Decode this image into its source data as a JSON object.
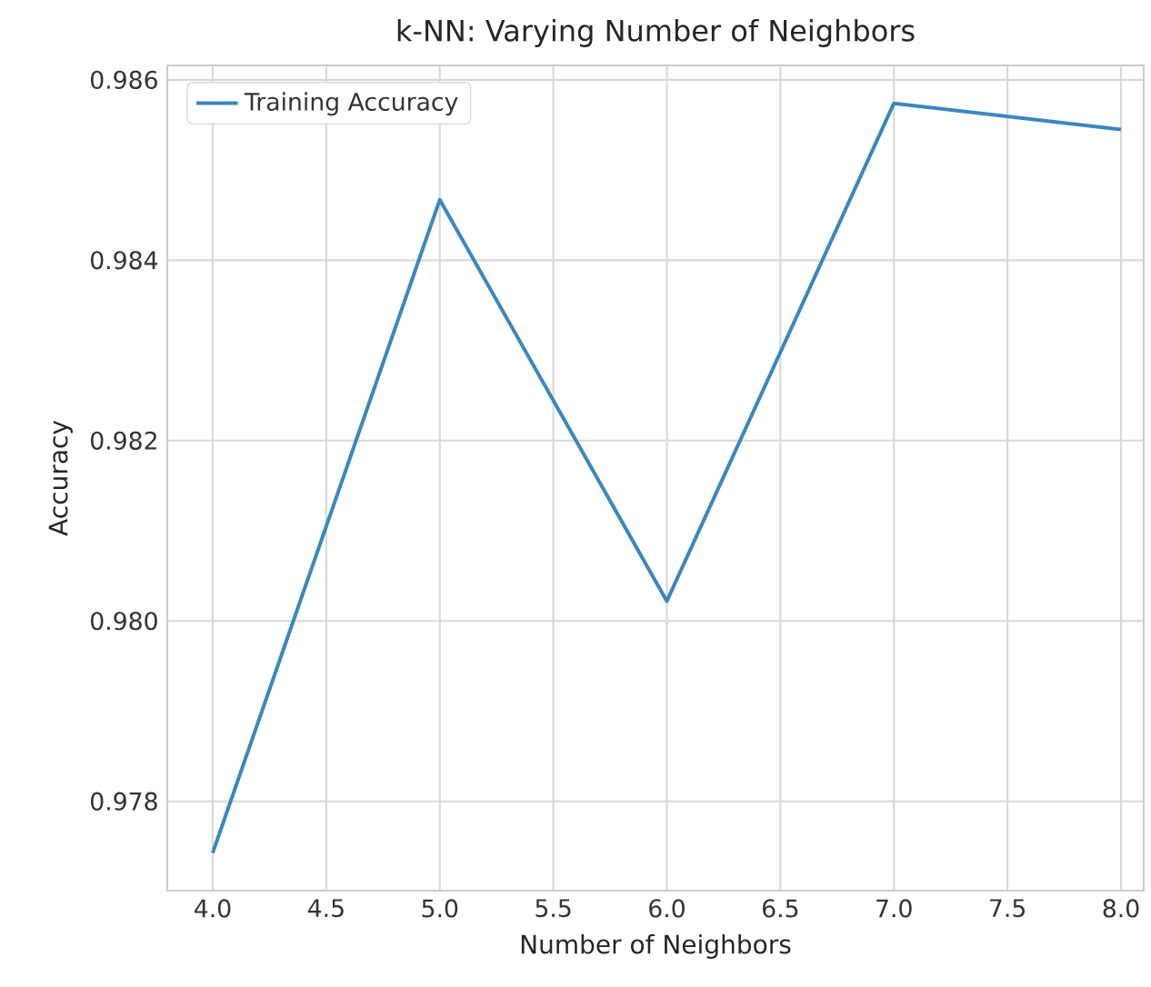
{
  "chart_data": {
    "type": "line",
    "title": "k-NN: Varying Number of Neighbors",
    "xlabel": "Number of Neighbors",
    "ylabel": "Accuracy",
    "x": [
      4,
      5,
      6,
      7,
      8
    ],
    "series": [
      {
        "name": "Training Accuracy",
        "color": "#3a87c0",
        "values": [
          0.97743,
          0.98467,
          0.98022,
          0.98574,
          0.98545
        ]
      }
    ],
    "xlim": [
      3.8,
      8.1
    ],
    "ylim": [
      0.97701,
      0.98616
    ],
    "xticks": [
      {
        "value": 4,
        "label": "4.0"
      },
      {
        "value": 4.5,
        "label": "4.5"
      },
      {
        "value": 5,
        "label": "5.0"
      },
      {
        "value": 5.5,
        "label": "5.5"
      },
      {
        "value": 6,
        "label": "6.0"
      },
      {
        "value": 6.5,
        "label": "6.5"
      },
      {
        "value": 7,
        "label": "7.0"
      },
      {
        "value": 7.5,
        "label": "7.5"
      },
      {
        "value": 8,
        "label": "8.0"
      }
    ],
    "yticks": [
      0.978,
      {
        "value": 0.98,
        "label": "0.980"
      },
      0.982,
      0.984,
      0.986
    ],
    "grid": true,
    "legend": "top left",
    "marker": "none",
    "line_style": "solid"
  }
}
